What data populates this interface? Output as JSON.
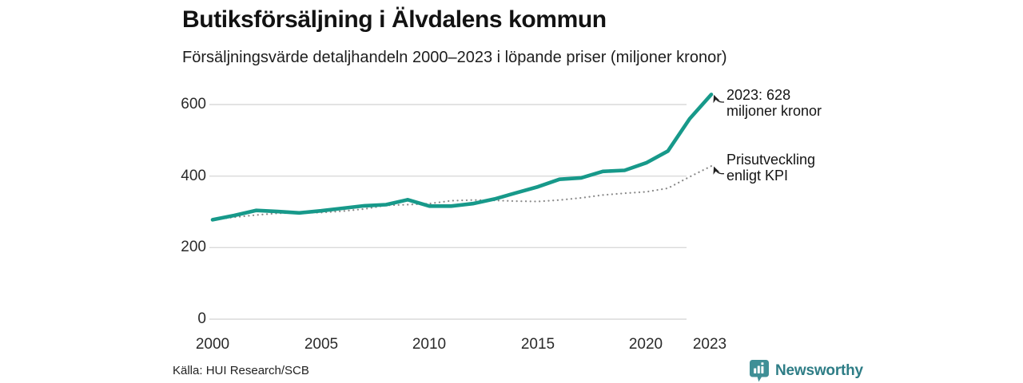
{
  "header": {
    "title": "Butiksförsäljning i Älvdalens kommun",
    "subtitle": "Försäljningsvärde detaljhandeln 2000–2023 i löpande priser (miljoner kronor)"
  },
  "chart_data": {
    "type": "line",
    "title": "Butiksförsäljning i Älvdalens kommun",
    "subtitle": "Försäljningsvärde detaljhandeln 2000–2023 i löpande priser (miljoner kronor)",
    "x": [
      2000,
      2001,
      2002,
      2003,
      2004,
      2005,
      2006,
      2007,
      2008,
      2009,
      2010,
      2011,
      2012,
      2013,
      2014,
      2015,
      2016,
      2017,
      2018,
      2019,
      2020,
      2021,
      2022,
      2023
    ],
    "series": [
      {
        "name": "Butiksförsäljning i löpande priser (miljoner kronor)",
        "style": "solid",
        "color": "#17998a",
        "values": [
          278,
          290,
          304,
          301,
          297,
          303,
          310,
          317,
          320,
          334,
          316,
          316,
          323,
          336,
          353,
          370,
          391,
          395,
          413,
          416,
          437,
          470,
          560,
          628
        ]
      },
      {
        "name": "Prisutveckling enligt KPI",
        "style": "dotted",
        "color": "#8a8a8a",
        "values": [
          278,
          285,
          291,
          296,
          297,
          298,
          302,
          308,
          318,
          320,
          323,
          331,
          333,
          332,
          330,
          329,
          333,
          339,
          347,
          352,
          356,
          366,
          398,
          428
        ]
      }
    ],
    "ylim": [
      0,
      650
    ],
    "yticks": [
      0,
      200,
      400,
      600
    ],
    "xticks": [
      2000,
      2005,
      2010,
      2015,
      2020,
      2023
    ],
    "grid": "horizontal",
    "legend": "none",
    "annotations": [
      {
        "lines": [
          "2023: 628",
          "miljoner kronor"
        ],
        "x": 2023,
        "y": 628
      },
      {
        "lines": [
          "Prisutveckling",
          "enligt KPI"
        ],
        "x": 2023,
        "y": 428
      }
    ]
  },
  "axes": {
    "yticklabels": [
      "600",
      "400",
      "200",
      "0"
    ],
    "xticklabels": [
      "2000",
      "2005",
      "2010",
      "2015",
      "2020",
      "2023"
    ]
  },
  "footer": {
    "source": "Källa: HUI Research/SCB",
    "brand": "Newsworthy"
  },
  "colors": {
    "line": "#17998a",
    "kpi_dotted": "#8a8a8a",
    "grid": "#dadada",
    "annotation_arrow": "#222222",
    "brand_teal": "#2e7d86",
    "brand_icon": "#3f8f96"
  }
}
